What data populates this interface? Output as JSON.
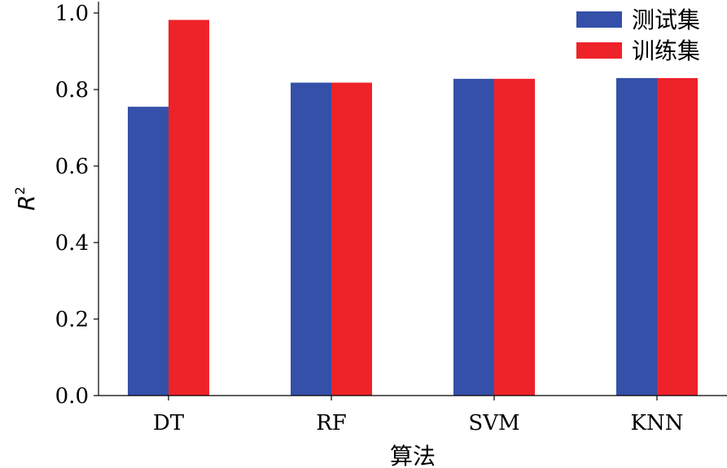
{
  "chart_data": {
    "type": "bar",
    "categories": [
      "DT",
      "RF",
      "SVM",
      "KNN"
    ],
    "series": [
      {
        "name": "测试集",
        "values": [
          0.755,
          0.818,
          0.828,
          0.83
        ],
        "color": "#3450a8"
      },
      {
        "name": "训练集",
        "values": [
          0.982,
          0.818,
          0.828,
          0.83
        ],
        "color": "#ee2229"
      }
    ],
    "xlabel": "算法",
    "ylabel": "R",
    "ylabel_superscript": "2",
    "ylim": [
      0,
      1.0
    ],
    "yticks": [
      "0.0",
      "0.2",
      "0.4",
      "0.6",
      "0.8",
      "1.0"
    ],
    "ytick_values": [
      0,
      0.2,
      0.4,
      0.6,
      0.8,
      1.0
    ],
    "grid": false,
    "legend_position": "top-right"
  }
}
